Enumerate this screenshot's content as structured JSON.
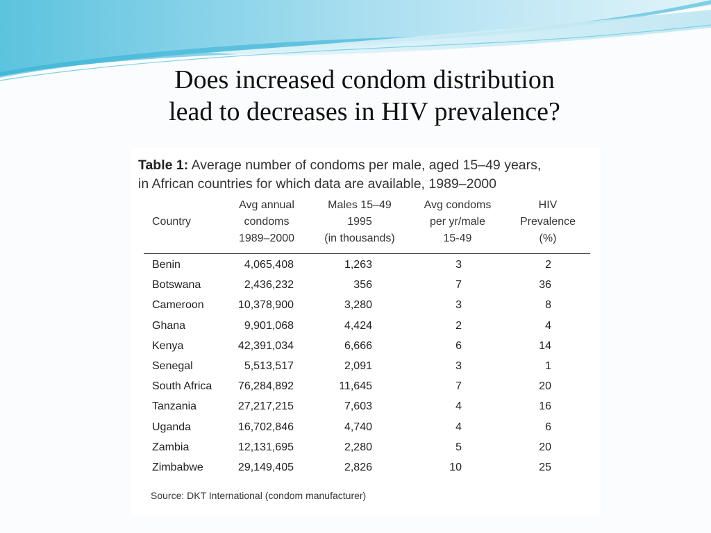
{
  "slide": {
    "title_line1": "Does increased condom distribution",
    "title_line2": "lead to decreases in HIV prevalence?"
  },
  "table": {
    "caption_label": "Table 1:",
    "caption_text_line1": "Average number of condoms per male, aged 15–49 years,",
    "caption_text_line2": "in African countries for which data are available, 1989–2000",
    "headers": [
      {
        "lines": [
          "Country"
        ]
      },
      {
        "lines": [
          "Avg annual",
          "condoms",
          "1989–2000"
        ]
      },
      {
        "lines": [
          "Males 15–49",
          "1995",
          "(in thousands)"
        ]
      },
      {
        "lines": [
          "Avg condoms",
          "per yr/male",
          "15-49"
        ]
      },
      {
        "lines": [
          "HIV",
          "Prevalence",
          "(%)"
        ]
      }
    ],
    "rows": [
      {
        "country": "Benin",
        "annual": "4,065,408",
        "males": "1,263",
        "avg": "3",
        "hiv": "2"
      },
      {
        "country": "Botswana",
        "annual": "2,436,232",
        "males": "356",
        "avg": "7",
        "hiv": "36"
      },
      {
        "country": "Cameroon",
        "annual": "10,378,900",
        "males": "3,280",
        "avg": "3",
        "hiv": "8"
      },
      {
        "country": "Ghana",
        "annual": "9,901,068",
        "males": "4,424",
        "avg": "2",
        "hiv": "4"
      },
      {
        "country": "Kenya",
        "annual": "42,391,034",
        "males": "6,666",
        "avg": "6",
        "hiv": "14"
      },
      {
        "country": "Senegal",
        "annual": "5,513,517",
        "males": "2,091",
        "avg": "3",
        "hiv": "1"
      },
      {
        "country": "South Africa",
        "annual": "76,284,892",
        "males": "11,645",
        "avg": "7",
        "hiv": "20"
      },
      {
        "country": "Tanzania",
        "annual": "27,217,215",
        "males": "7,603",
        "avg": "4",
        "hiv": "16"
      },
      {
        "country": "Uganda",
        "annual": "16,702,846",
        "males": "4,740",
        "avg": "4",
        "hiv": "6"
      },
      {
        "country": "Zambia",
        "annual": "12,131,695",
        "males": "2,280",
        "avg": "5",
        "hiv": "20"
      },
      {
        "country": "Zimbabwe",
        "annual": "29,149,405",
        "males": "2,826",
        "avg": "10",
        "hiv": "25"
      }
    ],
    "source": "Source: DKT International (condom manufacturer)"
  },
  "colors": {
    "swoosh_light": "#bfe6f0",
    "swoosh_mid": "#8fd3e6",
    "swoosh_dark": "#4fb9d8"
  }
}
